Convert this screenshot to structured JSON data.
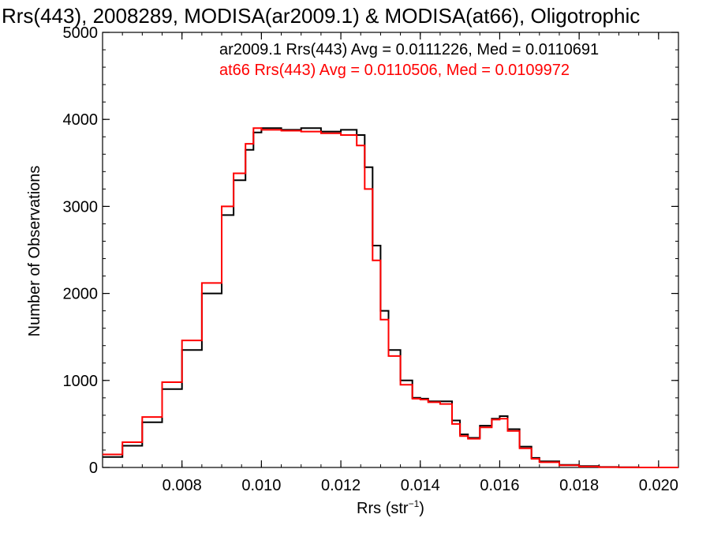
{
  "chart_data": {
    "type": "line",
    "title": "Rrs(443), 2008289, MODISA(ar2009.1) & MODISA(at66), Oligotrophic",
    "xlabel": "Rrs (str",
    "xlabel_sup": "−1",
    "xlabel_close": ")",
    "ylabel": "Number of Observations",
    "xlim": [
      0.006,
      0.0205
    ],
    "ylim": [
      0,
      5000
    ],
    "x_ticks": [
      {
        "value": 0.008,
        "label": "0.008"
      },
      {
        "value": 0.01,
        "label": "0.010"
      },
      {
        "value": 0.012,
        "label": "0.012"
      },
      {
        "value": 0.014,
        "label": "0.014"
      },
      {
        "value": 0.016,
        "label": "0.016"
      },
      {
        "value": 0.018,
        "label": "0.018"
      },
      {
        "value": 0.02,
        "label": "0.020"
      }
    ],
    "y_ticks": [
      {
        "value": 0,
        "label": "0"
      },
      {
        "value": 1000,
        "label": "1000"
      },
      {
        "value": 2000,
        "label": "2000"
      },
      {
        "value": 3000,
        "label": "3000"
      },
      {
        "value": 4000,
        "label": "4000"
      },
      {
        "value": 5000,
        "label": "5000"
      }
    ],
    "grid": false,
    "legend_position": "top-right",
    "x": [
      0.006,
      0.0065,
      0.007,
      0.0075,
      0.008,
      0.0085,
      0.009,
      0.0093,
      0.0096,
      0.0098,
      0.01,
      0.0105,
      0.011,
      0.0115,
      0.012,
      0.0124,
      0.0126,
      0.0128,
      0.013,
      0.0132,
      0.0135,
      0.0138,
      0.014,
      0.0142,
      0.0145,
      0.0148,
      0.015,
      0.0152,
      0.0155,
      0.0158,
      0.016,
      0.0162,
      0.0165,
      0.0168,
      0.017,
      0.0175,
      0.018,
      0.0185,
      0.019,
      0.0195,
      0.02,
      0.0205
    ],
    "series": [
      {
        "name": "ar2009.1 Rrs(443) Avg = 0.0111226, Med = 0.0110691",
        "color": "#000000",
        "values": [
          120,
          250,
          520,
          900,
          1350,
          2000,
          2900,
          3300,
          3650,
          3850,
          3900,
          3880,
          3900,
          3860,
          3880,
          3820,
          3450,
          2550,
          1800,
          1350,
          1000,
          800,
          790,
          760,
          760,
          540,
          380,
          340,
          480,
          560,
          590,
          440,
          240,
          110,
          70,
          30,
          15,
          5,
          2,
          0,
          0,
          0
        ]
      },
      {
        "name": "at66 Rrs(443) Avg = 0.0110506, Med = 0.0109972",
        "color": "#ff0000",
        "values": [
          150,
          290,
          580,
          980,
          1460,
          2120,
          3000,
          3380,
          3720,
          3900,
          3880,
          3870,
          3860,
          3840,
          3820,
          3700,
          3200,
          2380,
          1700,
          1280,
          950,
          790,
          780,
          750,
          730,
          500,
          360,
          330,
          460,
          550,
          560,
          420,
          220,
          100,
          60,
          25,
          10,
          4,
          1,
          0,
          0,
          0
        ]
      }
    ]
  }
}
